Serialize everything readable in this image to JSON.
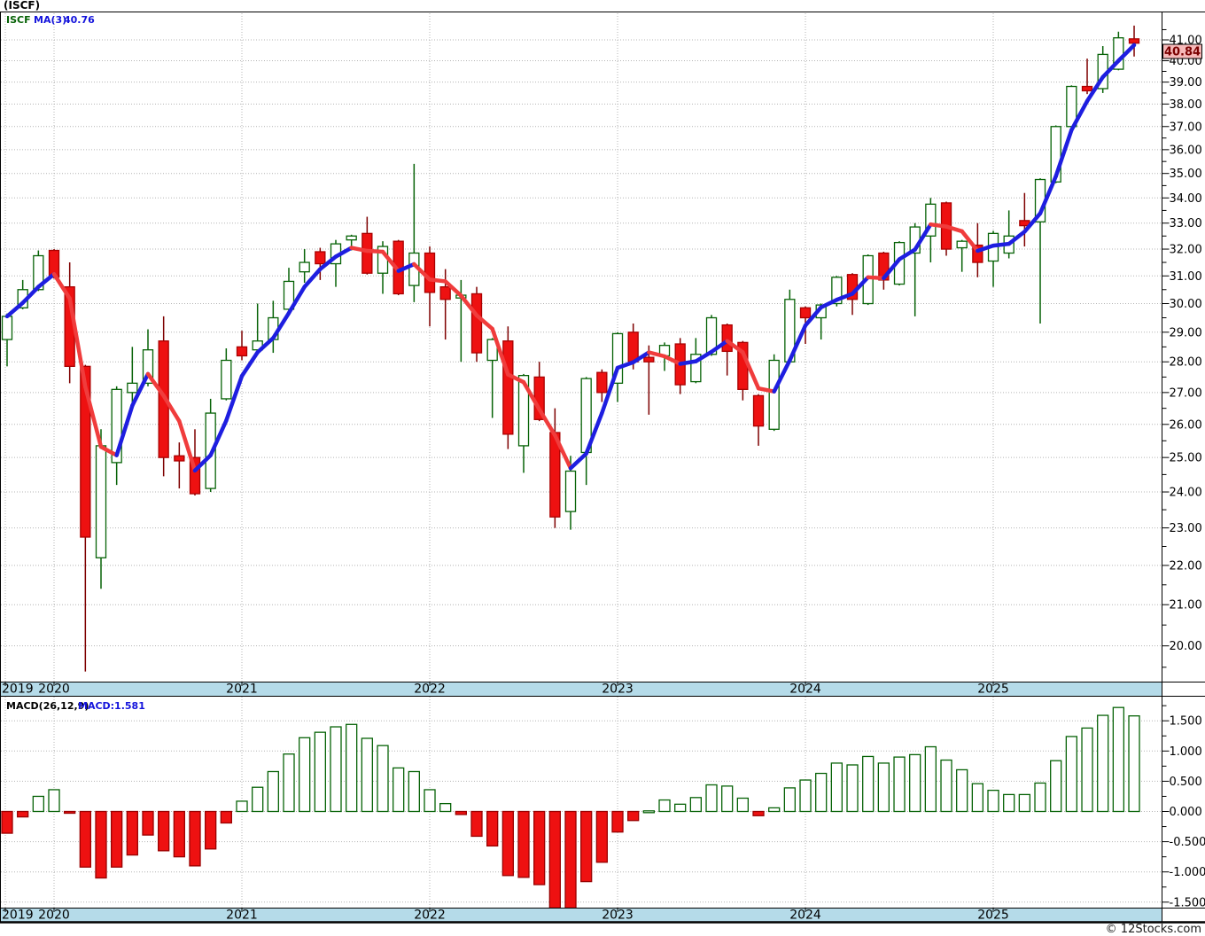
{
  "window_title": "(ISCF)",
  "legend": {
    "symbol": "ISCF",
    "ma_label": "MA(3)",
    "ma_value": "40.76"
  },
  "macd_panel": {
    "label": "MACD(26,12,9)",
    "value": "MACD:1.581"
  },
  "price_tag": "40.84",
  "footer": {
    "copyright": "© 12Stocks.com"
  },
  "colors": {
    "background": "#ffffff",
    "candle_up_stroke": "#066206",
    "candle_up_fill": "#ffffff",
    "candle_down_fill": "#ee1111",
    "candle_down_stroke": "#aa0000",
    "wick_up": "#066206",
    "wick_down": "#7e0000",
    "ma_up": "#1e1ee0",
    "ma_down": "#f03c3c",
    "grid": "#b4b4b4",
    "band_bg": "#b5dbe9",
    "border": "#000000",
    "axis_text": "#000000",
    "tag_bg": "#f6b9b9",
    "tag_text": "#7a0000",
    "macd_pos_stroke": "#066206",
    "macd_pos_fill": "#ffffff",
    "macd_neg_fill": "#ee1111",
    "macd_neg_stroke": "#990000"
  },
  "chart_data": {
    "type": "candlestick",
    "subchart": "macd-histogram",
    "scale": "log",
    "x_unit": "month",
    "ma_period": 3,
    "grid": "dotted",
    "legend_position": "top-left",
    "price_domain": [
      19.2,
      42.35
    ],
    "macd_domain": [
      -1.6,
      1.9
    ],
    "year_labels": [
      "2019",
      "2020",
      "2021",
      "2022",
      "2023",
      "2024",
      "2025"
    ],
    "price_axis_labels": [
      "41.00",
      "40.00",
      "39.00",
      "38.00",
      "37.00",
      "36.00",
      "35.00",
      "34.00",
      "33.00",
      "32.00",
      "31.00",
      "30.00",
      "29.00",
      "28.00",
      "27.00",
      "26.00",
      "25.00",
      "24.00",
      "23.00",
      "22.00",
      "21.00",
      "20.00"
    ],
    "macd_axis_labels": [
      "1.500",
      "1.000",
      "0.500",
      "0.000",
      "-0.500",
      "-1.000",
      "-1.500"
    ],
    "candles": [
      {
        "t": "2019-10",
        "o": 28.75,
        "h": 29.65,
        "l": 27.85,
        "c": 29.55
      },
      {
        "t": "2019-11",
        "o": 29.85,
        "h": 30.85,
        "l": 29.8,
        "c": 30.5
      },
      {
        "t": "2019-12",
        "o": 30.5,
        "h": 31.95,
        "l": 30.45,
        "c": 31.75
      },
      {
        "t": "2020-01",
        "o": 31.95,
        "h": 32.0,
        "l": 30.9,
        "c": 30.95
      },
      {
        "t": "2020-02",
        "o": 30.6,
        "h": 31.5,
        "l": 27.3,
        "c": 27.85
      },
      {
        "t": "2020-03",
        "o": 27.85,
        "h": 27.9,
        "l": 19.4,
        "c": 22.75
      },
      {
        "t": "2020-04",
        "o": 22.2,
        "h": 25.85,
        "l": 21.4,
        "c": 25.35
      },
      {
        "t": "2020-05",
        "o": 24.85,
        "h": 27.2,
        "l": 24.2,
        "c": 27.1
      },
      {
        "t": "2020-06",
        "o": 27.0,
        "h": 28.5,
        "l": 26.6,
        "c": 27.3
      },
      {
        "t": "2020-07",
        "o": 27.3,
        "h": 29.1,
        "l": 27.2,
        "c": 28.4
      },
      {
        "t": "2020-08",
        "o": 28.7,
        "h": 29.55,
        "l": 24.45,
        "c": 25.0
      },
      {
        "t": "2020-09",
        "o": 25.05,
        "h": 25.45,
        "l": 24.1,
        "c": 24.9
      },
      {
        "t": "2020-10",
        "o": 25.0,
        "h": 25.85,
        "l": 23.9,
        "c": 23.95
      },
      {
        "t": "2020-11",
        "o": 24.1,
        "h": 26.8,
        "l": 24.0,
        "c": 26.35
      },
      {
        "t": "2020-12",
        "o": 26.8,
        "h": 28.45,
        "l": 26.75,
        "c": 28.05
      },
      {
        "t": "2021-01",
        "o": 28.5,
        "h": 29.05,
        "l": 28.05,
        "c": 28.2
      },
      {
        "t": "2021-02",
        "o": 28.4,
        "h": 30.0,
        "l": 28.3,
        "c": 28.7
      },
      {
        "t": "2021-03",
        "o": 28.75,
        "h": 30.1,
        "l": 28.3,
        "c": 29.5
      },
      {
        "t": "2021-04",
        "o": 29.8,
        "h": 31.3,
        "l": 29.75,
        "c": 30.8
      },
      {
        "t": "2021-05",
        "o": 31.15,
        "h": 32.0,
        "l": 30.75,
        "c": 31.5
      },
      {
        "t": "2021-06",
        "o": 31.9,
        "h": 32.05,
        "l": 30.85,
        "c": 31.45
      },
      {
        "t": "2021-07",
        "o": 31.45,
        "h": 32.35,
        "l": 30.6,
        "c": 32.2
      },
      {
        "t": "2021-08",
        "o": 32.35,
        "h": 32.55,
        "l": 31.95,
        "c": 32.5
      },
      {
        "t": "2021-09",
        "o": 32.6,
        "h": 33.25,
        "l": 31.05,
        "c": 31.1
      },
      {
        "t": "2021-10",
        "o": 31.1,
        "h": 32.3,
        "l": 30.35,
        "c": 32.1
      },
      {
        "t": "2021-11",
        "o": 32.3,
        "h": 32.35,
        "l": 30.3,
        "c": 30.35
      },
      {
        "t": "2021-12",
        "o": 30.65,
        "h": 35.4,
        "l": 30.05,
        "c": 31.85
      },
      {
        "t": "2022-01",
        "o": 31.85,
        "h": 32.1,
        "l": 29.2,
        "c": 30.4
      },
      {
        "t": "2022-02",
        "o": 30.6,
        "h": 31.25,
        "l": 28.75,
        "c": 30.15
      },
      {
        "t": "2022-03",
        "o": 30.2,
        "h": 30.85,
        "l": 28.0,
        "c": 30.3
      },
      {
        "t": "2022-04",
        "o": 30.35,
        "h": 30.6,
        "l": 28.0,
        "c": 28.3
      },
      {
        "t": "2022-05",
        "o": 28.05,
        "h": 28.8,
        "l": 26.2,
        "c": 28.75
      },
      {
        "t": "2022-06",
        "o": 28.7,
        "h": 29.2,
        "l": 25.25,
        "c": 25.7
      },
      {
        "t": "2022-07",
        "o": 25.35,
        "h": 27.6,
        "l": 24.55,
        "c": 27.55
      },
      {
        "t": "2022-08",
        "o": 27.5,
        "h": 28.0,
        "l": 26.1,
        "c": 26.15
      },
      {
        "t": "2022-09",
        "o": 25.75,
        "h": 26.5,
        "l": 23.0,
        "c": 23.3
      },
      {
        "t": "2022-10",
        "o": 23.45,
        "h": 25.05,
        "l": 22.95,
        "c": 24.6
      },
      {
        "t": "2022-11",
        "o": 25.15,
        "h": 27.5,
        "l": 24.2,
        "c": 27.45
      },
      {
        "t": "2022-12",
        "o": 27.65,
        "h": 27.75,
        "l": 26.7,
        "c": 27.0
      },
      {
        "t": "2023-01",
        "o": 27.3,
        "h": 29.0,
        "l": 26.7,
        "c": 28.95
      },
      {
        "t": "2023-02",
        "o": 29.0,
        "h": 29.3,
        "l": 27.75,
        "c": 28.0
      },
      {
        "t": "2023-03",
        "o": 28.15,
        "h": 28.55,
        "l": 26.3,
        "c": 28.0
      },
      {
        "t": "2023-04",
        "o": 28.2,
        "h": 28.65,
        "l": 27.7,
        "c": 28.55
      },
      {
        "t": "2023-05",
        "o": 28.6,
        "h": 28.8,
        "l": 26.95,
        "c": 27.25
      },
      {
        "t": "2023-06",
        "o": 27.35,
        "h": 28.8,
        "l": 27.3,
        "c": 28.25
      },
      {
        "t": "2023-07",
        "o": 28.25,
        "h": 29.6,
        "l": 28.2,
        "c": 29.5
      },
      {
        "t": "2023-08",
        "o": 29.25,
        "h": 29.3,
        "l": 27.55,
        "c": 28.35
      },
      {
        "t": "2023-09",
        "o": 28.65,
        "h": 28.7,
        "l": 26.75,
        "c": 27.1
      },
      {
        "t": "2023-10",
        "o": 26.9,
        "h": 26.95,
        "l": 25.35,
        "c": 25.95
      },
      {
        "t": "2023-11",
        "o": 25.85,
        "h": 28.25,
        "l": 25.8,
        "c": 28.05
      },
      {
        "t": "2023-12",
        "o": 28.0,
        "h": 30.5,
        "l": 28.0,
        "c": 30.15
      },
      {
        "t": "2024-01",
        "o": 29.85,
        "h": 29.9,
        "l": 28.6,
        "c": 29.5
      },
      {
        "t": "2024-02",
        "o": 29.5,
        "h": 30.0,
        "l": 28.75,
        "c": 29.95
      },
      {
        "t": "2024-03",
        "o": 30.0,
        "h": 31.0,
        "l": 29.9,
        "c": 30.95
      },
      {
        "t": "2024-04",
        "o": 31.05,
        "h": 31.1,
        "l": 29.6,
        "c": 30.15
      },
      {
        "t": "2024-05",
        "o": 30.0,
        "h": 31.8,
        "l": 29.95,
        "c": 31.75
      },
      {
        "t": "2024-06",
        "o": 31.85,
        "h": 31.9,
        "l": 30.5,
        "c": 30.85
      },
      {
        "t": "2024-07",
        "o": 30.7,
        "h": 32.3,
        "l": 30.65,
        "c": 32.25
      },
      {
        "t": "2024-08",
        "o": 31.85,
        "h": 33.0,
        "l": 29.55,
        "c": 32.85
      },
      {
        "t": "2024-09",
        "o": 32.5,
        "h": 34.0,
        "l": 31.5,
        "c": 33.75
      },
      {
        "t": "2024-10",
        "o": 33.8,
        "h": 33.85,
        "l": 31.75,
        "c": 32.0
      },
      {
        "t": "2024-11",
        "o": 32.05,
        "h": 32.35,
        "l": 31.15,
        "c": 32.3
      },
      {
        "t": "2024-12",
        "o": 32.15,
        "h": 33.0,
        "l": 30.95,
        "c": 31.5
      },
      {
        "t": "2025-01",
        "o": 31.55,
        "h": 32.7,
        "l": 30.6,
        "c": 32.6
      },
      {
        "t": "2025-02",
        "o": 31.85,
        "h": 33.5,
        "l": 31.65,
        "c": 32.5
      },
      {
        "t": "2025-03",
        "o": 33.1,
        "h": 34.2,
        "l": 32.1,
        "c": 32.9
      },
      {
        "t": "2025-04",
        "o": 33.05,
        "h": 34.8,
        "l": 29.3,
        "c": 34.75
      },
      {
        "t": "2025-05",
        "o": 34.65,
        "h": 37.05,
        "l": 34.6,
        "c": 37.0
      },
      {
        "t": "2025-06",
        "o": 37.0,
        "h": 38.85,
        "l": 36.95,
        "c": 38.8
      },
      {
        "t": "2025-07",
        "o": 38.8,
        "h": 40.1,
        "l": 38.45,
        "c": 38.6
      },
      {
        "t": "2025-08",
        "o": 38.7,
        "h": 40.7,
        "l": 38.5,
        "c": 40.3
      },
      {
        "t": "2025-09",
        "o": 39.6,
        "h": 41.4,
        "l": 39.55,
        "c": 41.1
      },
      {
        "t": "2025-10",
        "o": 41.05,
        "h": 41.7,
        "l": 40.2,
        "c": 40.84
      }
    ],
    "macd_values": [
      -0.36,
      -0.09,
      0.25,
      0.36,
      -0.02,
      -0.92,
      -1.1,
      -0.92,
      -0.72,
      -0.39,
      -0.65,
      -0.75,
      -0.9,
      -0.62,
      -0.19,
      0.17,
      0.4,
      0.66,
      0.95,
      1.22,
      1.31,
      1.4,
      1.44,
      1.21,
      1.09,
      0.72,
      0.66,
      0.36,
      0.13,
      -0.05,
      -0.41,
      -0.57,
      -1.06,
      -1.09,
      -1.21,
      -1.6,
      -1.6,
      -1.16,
      -0.84,
      -0.34,
      -0.15,
      0.01,
      0.19,
      0.12,
      0.23,
      0.44,
      0.42,
      0.22,
      -0.07,
      0.06,
      0.39,
      0.52,
      0.63,
      0.8,
      0.77,
      0.91,
      0.8,
      0.9,
      0.94,
      1.07,
      0.85,
      0.69,
      0.46,
      0.35,
      0.28,
      0.28,
      0.47,
      0.84,
      1.24,
      1.38,
      1.59,
      1.72,
      1.581
    ]
  }
}
